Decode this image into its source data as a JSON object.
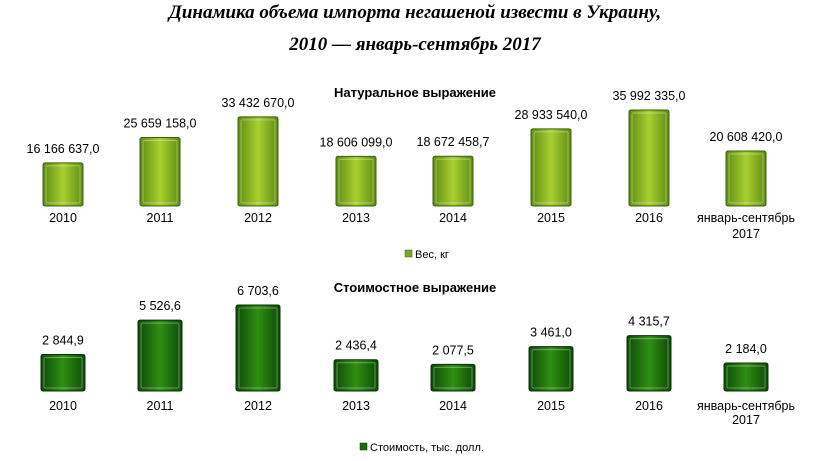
{
  "title_line1": "Динамика объема импорта негашеной извести в Украину,",
  "title_line2": "2010 — январь-сентябрь 2017",
  "colors": {
    "weight_fill_light": "#a6cc2e",
    "weight_fill_dark": "#4f7a0e",
    "cost_fill_light": "#2f8f12",
    "cost_fill_dark": "#0b3f05"
  },
  "chart_data": [
    {
      "type": "bar",
      "title": "Натуральное выражение",
      "categories": [
        "2010",
        "2011",
        "2012",
        "2013",
        "2014",
        "2015",
        "2016",
        "январь-сентябрь 2017"
      ],
      "values": [
        16166637.0,
        25659158.0,
        33432670.0,
        18606099.0,
        18672458.7,
        28933540.0,
        35992335.0,
        20608420.0
      ],
      "value_labels": [
        "16 166 637,0",
        "25 659 158,0",
        "33 432 670,0",
        "18 606 099,0",
        "18 672 458,7",
        "28 933 540,0",
        "35 992 335,0",
        "20 608 420,0"
      ],
      "series": [
        {
          "name": "Вес, кг"
        }
      ],
      "legend": "bottom",
      "grid": false
    },
    {
      "type": "bar",
      "title": "Стоимостное выражение",
      "categories": [
        "2010",
        "2011",
        "2012",
        "2013",
        "2014",
        "2015",
        "2016",
        "январь-сентябрь 2017"
      ],
      "values": [
        2844.9,
        5526.6,
        6703.6,
        2436.4,
        2077.5,
        3461.0,
        4315.7,
        2184.0
      ],
      "value_labels": [
        "2 844,9",
        "5 526,6",
        "6 703,6",
        "2 436,4",
        "2 077,5",
        "3 461,0",
        "4 315,7",
        "2 184,0"
      ],
      "series": [
        {
          "name": "Стоимость, тыс. долл."
        }
      ],
      "legend": "bottom",
      "grid": false
    }
  ]
}
